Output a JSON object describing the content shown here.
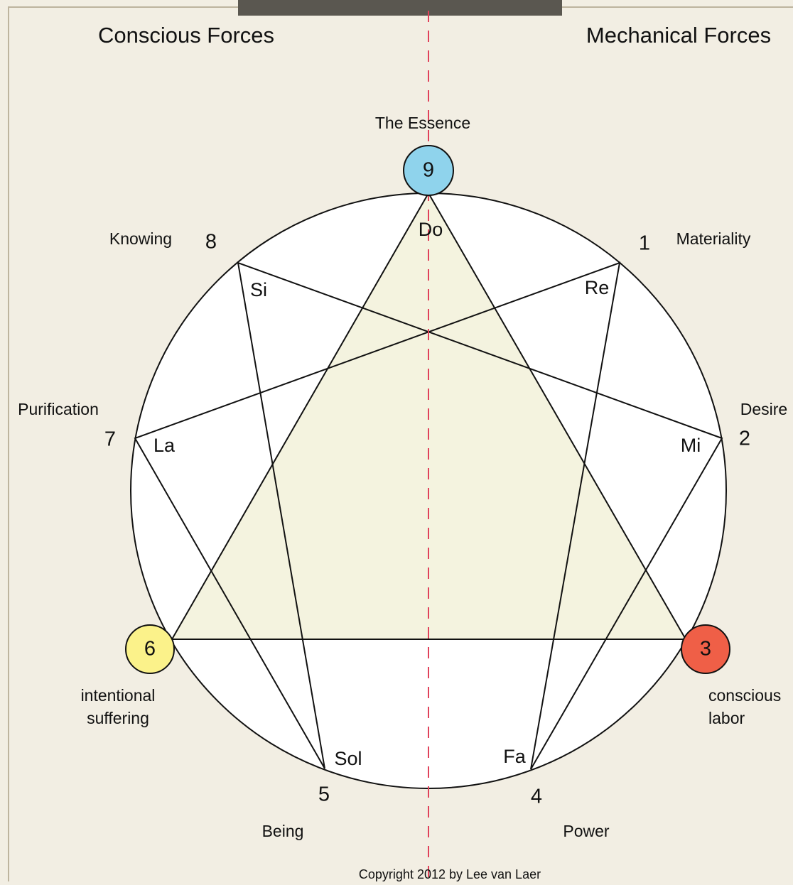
{
  "headings": {
    "left": "Conscious Forces",
    "right": "Mechanical Forces"
  },
  "nodes": [
    {
      "number": "9",
      "note": "Do",
      "label": [
        "The Essence"
      ]
    },
    {
      "number": "1",
      "note": "Re",
      "label": [
        "Materiality"
      ]
    },
    {
      "number": "2",
      "note": "Mi",
      "label": [
        "Desire"
      ]
    },
    {
      "number": "3",
      "label": [
        "conscious",
        "labor"
      ]
    },
    {
      "number": "4",
      "note": "Fa",
      "label": [
        "Power"
      ]
    },
    {
      "number": "5",
      "note": "Sol",
      "label": [
        "Being"
      ]
    },
    {
      "number": "6",
      "label": [
        "intentional",
        "suffering"
      ]
    },
    {
      "number": "7",
      "note": "La",
      "label": [
        "Purification"
      ]
    },
    {
      "number": "8",
      "note": "Si",
      "label": [
        "Knowing"
      ]
    }
  ],
  "copyright": "Copyright 2012 by Lee van Laer"
}
